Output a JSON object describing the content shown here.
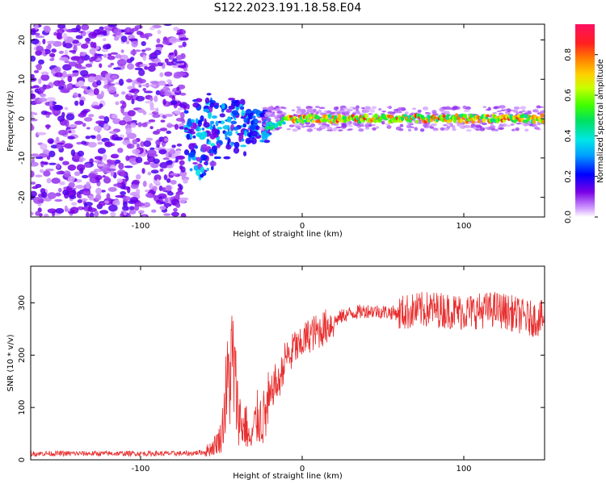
{
  "title": "S122.2023.191.18.58.E04",
  "colors": {
    "snr_line": "#e83030",
    "spectrogram_noise": "#8a2be2",
    "axis": "#000000"
  },
  "chart_data": [
    {
      "type": "heatmap",
      "xlabel": "Height of straight line (km)",
      "ylabel": "Frequency (Hz)",
      "xlim": [
        -168,
        150
      ],
      "ylim": [
        -25,
        24
      ],
      "x_ticks": [
        -100,
        0,
        100
      ],
      "y_ticks": [
        -20,
        -10,
        0,
        10,
        20
      ],
      "colorbar": {
        "label": "Normalized spectral amplitude",
        "range": [
          0,
          0.95
        ],
        "ticks": [
          0.0,
          0.2,
          0.4,
          0.6,
          0.8
        ],
        "colormap": "rainbow"
      },
      "regions": [
        {
          "x_range": [
            -168,
            -72
          ],
          "frequency_range": [
            -25,
            24
          ],
          "amplitude": "low (0.0-0.2), scattered noise"
        },
        {
          "x_range": [
            -72,
            -20
          ],
          "frequency_range": [
            -12,
            6
          ],
          "amplitude": "0.2-0.4, broad scattered signal"
        },
        {
          "x_range": [
            -20,
            150
          ],
          "frequency_center": 0,
          "amplitude": "0.6-0.9, narrow line near 0 Hz"
        }
      ]
    },
    {
      "type": "line",
      "xlabel": "Height of straight line (km)",
      "ylabel": "SNR (10 * v/v)",
      "xlim": [
        -168,
        150
      ],
      "ylim": [
        0,
        370
      ],
      "x_ticks": [
        -100,
        0,
        100
      ],
      "y_ticks": [
        0,
        100,
        200,
        300
      ],
      "series": [
        {
          "x": [
            -168,
            -150,
            -130,
            -110,
            -90,
            -70,
            -60,
            -55,
            -50,
            -47,
            -45,
            -43,
            -40,
            -37,
            -35,
            -32,
            -30,
            -27,
            -25,
            -22,
            -20,
            -17,
            -15,
            -12,
            -10,
            -7,
            -5,
            -2,
            0,
            5,
            10,
            15,
            20,
            25,
            30,
            40,
            50,
            60,
            70,
            80,
            90,
            100,
            110,
            120,
            130,
            140,
            150
          ],
          "y": [
            12,
            12,
            12,
            12,
            12,
            12,
            15,
            25,
            45,
            130,
            160,
            190,
            100,
            60,
            70,
            30,
            60,
            85,
            75,
            90,
            110,
            150,
            140,
            175,
            200,
            195,
            220,
            210,
            225,
            240,
            245,
            255,
            265,
            275,
            280,
            285,
            283,
            280,
            285,
            288,
            285,
            282,
            285,
            288,
            280,
            270,
            270
          ]
        }
      ]
    }
  ]
}
